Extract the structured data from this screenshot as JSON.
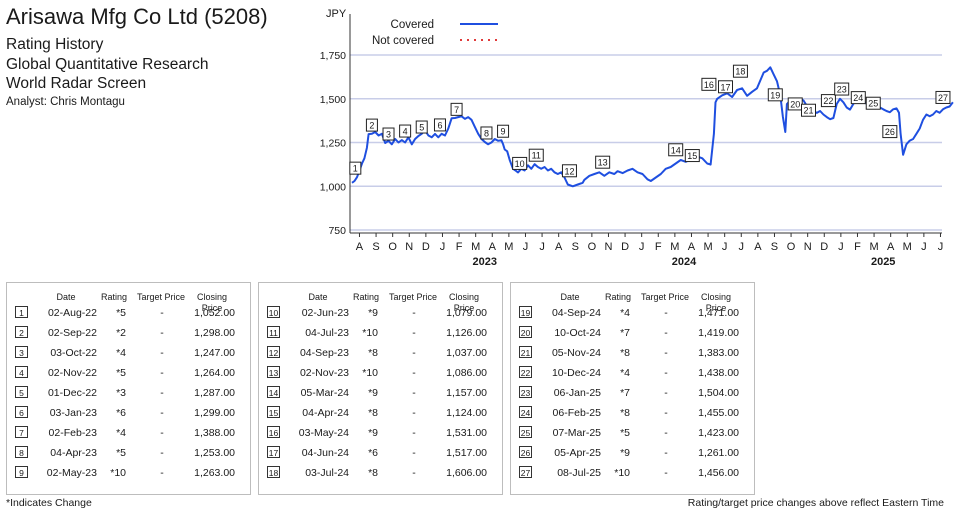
{
  "header": {
    "title": "Arisawa Mfg Co Ltd (5208)",
    "line1": "Rating History",
    "line2": "Global Quantitative Research",
    "line3": "World Radar Screen",
    "analyst": "Analyst: Chris Montagu"
  },
  "table_headers": {
    "date": "Date",
    "rating": "Rating",
    "target": "Target Price",
    "close": "Closing Price"
  },
  "table_rows": [
    {
      "n": "1",
      "date": "02-Aug-22",
      "rating": "*5",
      "target": "-",
      "close": "1,052.00"
    },
    {
      "n": "2",
      "date": "02-Sep-22",
      "rating": "*2",
      "target": "-",
      "close": "1,298.00"
    },
    {
      "n": "3",
      "date": "03-Oct-22",
      "rating": "*4",
      "target": "-",
      "close": "1,247.00"
    },
    {
      "n": "4",
      "date": "02-Nov-22",
      "rating": "*5",
      "target": "-",
      "close": "1,264.00"
    },
    {
      "n": "5",
      "date": "01-Dec-22",
      "rating": "*3",
      "target": "-",
      "close": "1,287.00"
    },
    {
      "n": "6",
      "date": "03-Jan-23",
      "rating": "*6",
      "target": "-",
      "close": "1,299.00"
    },
    {
      "n": "7",
      "date": "02-Feb-23",
      "rating": "*4",
      "target": "-",
      "close": "1,388.00"
    },
    {
      "n": "8",
      "date": "04-Apr-23",
      "rating": "*5",
      "target": "-",
      "close": "1,253.00"
    },
    {
      "n": "9",
      "date": "02-May-23",
      "rating": "*10",
      "target": "-",
      "close": "1,263.00"
    },
    {
      "n": "10",
      "date": "02-Jun-23",
      "rating": "*9",
      "target": "-",
      "close": "1,079.00"
    },
    {
      "n": "11",
      "date": "04-Jul-23",
      "rating": "*10",
      "target": "-",
      "close": "1,126.00"
    },
    {
      "n": "12",
      "date": "04-Sep-23",
      "rating": "*8",
      "target": "-",
      "close": "1,037.00"
    },
    {
      "n": "13",
      "date": "02-Nov-23",
      "rating": "*10",
      "target": "-",
      "close": "1,086.00"
    },
    {
      "n": "14",
      "date": "05-Mar-24",
      "rating": "*9",
      "target": "-",
      "close": "1,157.00"
    },
    {
      "n": "15",
      "date": "04-Apr-24",
      "rating": "*8",
      "target": "-",
      "close": "1,124.00"
    },
    {
      "n": "16",
      "date": "03-May-24",
      "rating": "*9",
      "target": "-",
      "close": "1,531.00"
    },
    {
      "n": "17",
      "date": "04-Jun-24",
      "rating": "*6",
      "target": "-",
      "close": "1,517.00"
    },
    {
      "n": "18",
      "date": "03-Jul-24",
      "rating": "*8",
      "target": "-",
      "close": "1,606.00"
    },
    {
      "n": "19",
      "date": "04-Sep-24",
      "rating": "*4",
      "target": "-",
      "close": "1,471.00"
    },
    {
      "n": "20",
      "date": "10-Oct-24",
      "rating": "*7",
      "target": "-",
      "close": "1,419.00"
    },
    {
      "n": "21",
      "date": "05-Nov-24",
      "rating": "*8",
      "target": "-",
      "close": "1,383.00"
    },
    {
      "n": "22",
      "date": "10-Dec-24",
      "rating": "*4",
      "target": "-",
      "close": "1,438.00"
    },
    {
      "n": "23",
      "date": "06-Jan-25",
      "rating": "*7",
      "target": "-",
      "close": "1,504.00"
    },
    {
      "n": "24",
      "date": "06-Feb-25",
      "rating": "*8",
      "target": "-",
      "close": "1,455.00"
    },
    {
      "n": "25",
      "date": "07-Mar-25",
      "rating": "*5",
      "target": "-",
      "close": "1,423.00"
    },
    {
      "n": "26",
      "date": "05-Apr-25",
      "rating": "*9",
      "target": "-",
      "close": "1,261.00"
    },
    {
      "n": "27",
      "date": "08-Jul-25",
      "rating": "*10",
      "target": "-",
      "close": "1,456.00"
    }
  ],
  "footer": {
    "left": "*Indicates Change",
    "right": "Rating/target price changes above reflect Eastern Time"
  },
  "chart_data": {
    "type": "line",
    "ylabel": "JPY",
    "ylim": [
      750,
      1750
    ],
    "yticks": [
      750,
      1000,
      1250,
      1500,
      1750
    ],
    "ytick_labels": [
      "750",
      "1,000",
      "1,250",
      "1,500",
      "1,750"
    ],
    "x_months": [
      "A",
      "S",
      "O",
      "N",
      "D",
      "J",
      "F",
      "M",
      "A",
      "M",
      "J",
      "J",
      "A",
      "S",
      "O",
      "N",
      "D",
      "J",
      "F",
      "M",
      "A",
      "M",
      "J",
      "J",
      "A",
      "S",
      "O",
      "N",
      "D",
      "J",
      "F",
      "M",
      "A",
      "M",
      "J",
      "J"
    ],
    "x_years": [
      {
        "label": "2023",
        "at_month": 8
      },
      {
        "label": "2024",
        "at_month": 20
      },
      {
        "label": "2025",
        "at_month": 32
      }
    ],
    "grid": "horizontal",
    "legend": [
      {
        "name": "Covered",
        "color": "#1f4fe0",
        "style": "solid"
      },
      {
        "name": "Not covered",
        "color": "#e03a3a",
        "style": "dotted"
      }
    ],
    "series": [
      {
        "name": "Covered",
        "color": "#1f4fe0",
        "points": [
          [
            0.0,
            1020
          ],
          [
            0.15,
            1030
          ],
          [
            0.3,
            1052
          ],
          [
            0.45,
            1090
          ],
          [
            0.6,
            1130
          ],
          [
            0.75,
            1160
          ],
          [
            0.9,
            1220
          ],
          [
            1.0,
            1298
          ],
          [
            1.2,
            1300
          ],
          [
            1.4,
            1310
          ],
          [
            1.6,
            1290
          ],
          [
            1.8,
            1300
          ],
          [
            2.0,
            1247
          ],
          [
            2.2,
            1260
          ],
          [
            2.4,
            1240
          ],
          [
            2.6,
            1270
          ],
          [
            2.8,
            1250
          ],
          [
            3.0,
            1264
          ],
          [
            3.2,
            1250
          ],
          [
            3.4,
            1280
          ],
          [
            3.6,
            1240
          ],
          [
            3.8,
            1270
          ],
          [
            4.0,
            1287
          ],
          [
            4.2,
            1300
          ],
          [
            4.4,
            1320
          ],
          [
            4.6,
            1290
          ],
          [
            4.8,
            1280
          ],
          [
            5.0,
            1299
          ],
          [
            5.2,
            1280
          ],
          [
            5.4,
            1300
          ],
          [
            5.6,
            1290
          ],
          [
            5.8,
            1330
          ],
          [
            6.0,
            1388
          ],
          [
            6.2,
            1390
          ],
          [
            6.4,
            1395
          ],
          [
            6.6,
            1400
          ],
          [
            6.8,
            1385
          ],
          [
            7.0,
            1395
          ],
          [
            7.2,
            1380
          ],
          [
            7.4,
            1340
          ],
          [
            7.6,
            1300
          ],
          [
            7.8,
            1270
          ],
          [
            8.0,
            1253
          ],
          [
            8.2,
            1240
          ],
          [
            8.4,
            1250
          ],
          [
            8.6,
            1270
          ],
          [
            8.8,
            1260
          ],
          [
            9.0,
            1263
          ],
          [
            9.1,
            1240
          ],
          [
            9.2,
            1210
          ],
          [
            9.35,
            1200
          ],
          [
            9.5,
            1150
          ],
          [
            9.7,
            1100
          ],
          [
            9.85,
            1090
          ],
          [
            10.0,
            1079
          ],
          [
            10.2,
            1100
          ],
          [
            10.4,
            1090
          ],
          [
            10.6,
            1120
          ],
          [
            10.8,
            1100
          ],
          [
            11.0,
            1126
          ],
          [
            11.2,
            1110
          ],
          [
            11.4,
            1100
          ],
          [
            11.6,
            1110
          ],
          [
            11.8,
            1090
          ],
          [
            12.0,
            1100
          ],
          [
            12.2,
            1080
          ],
          [
            12.4,
            1070
          ],
          [
            12.6,
            1080
          ],
          [
            12.8,
            1050
          ],
          [
            13.0,
            1010
          ],
          [
            13.3,
            1000
          ],
          [
            13.6,
            1010
          ],
          [
            13.9,
            1020
          ],
          [
            14.0,
            1037
          ],
          [
            14.3,
            1060
          ],
          [
            14.6,
            1070
          ],
          [
            14.9,
            1080
          ],
          [
            15.2,
            1060
          ],
          [
            15.5,
            1080
          ],
          [
            15.8,
            1070
          ],
          [
            16.0,
            1086
          ],
          [
            16.3,
            1075
          ],
          [
            16.6,
            1090
          ],
          [
            16.9,
            1100
          ],
          [
            17.2,
            1080
          ],
          [
            17.5,
            1070
          ],
          [
            17.8,
            1040
          ],
          [
            18.0,
            1030
          ],
          [
            18.3,
            1050
          ],
          [
            18.6,
            1070
          ],
          [
            18.9,
            1100
          ],
          [
            19.2,
            1110
          ],
          [
            19.5,
            1130
          ],
          [
            19.8,
            1150
          ],
          [
            20.1,
            1140
          ],
          [
            20.5,
            1157
          ],
          [
            20.8,
            1170
          ],
          [
            21.1,
            1160
          ],
          [
            21.4,
            1130
          ],
          [
            21.6,
            1124
          ],
          [
            21.8,
            1300
          ],
          [
            21.9,
            1480
          ],
          [
            22.0,
            1500
          ],
          [
            22.3,
            1520
          ],
          [
            22.6,
            1531
          ],
          [
            22.9,
            1510
          ],
          [
            23.2,
            1550
          ],
          [
            23.5,
            1560
          ],
          [
            23.8,
            1517
          ],
          [
            24.1,
            1540
          ],
          [
            24.4,
            1560
          ],
          [
            24.6,
            1606
          ],
          [
            24.8,
            1650
          ],
          [
            25.0,
            1660
          ],
          [
            25.2,
            1680
          ],
          [
            25.4,
            1640
          ],
          [
            25.6,
            1600
          ],
          [
            25.8,
            1520
          ],
          [
            25.95,
            1400
          ],
          [
            26.1,
            1310
          ],
          [
            26.2,
            1470
          ],
          [
            26.4,
            1490
          ],
          [
            26.6,
            1480
          ],
          [
            26.8,
            1471
          ],
          [
            27.0,
            1500
          ],
          [
            27.2,
            1490
          ],
          [
            27.4,
            1460
          ],
          [
            27.6,
            1440
          ],
          [
            27.8,
            1430
          ],
          [
            28.0,
            1419
          ],
          [
            28.2,
            1430
          ],
          [
            28.4,
            1410
          ],
          [
            28.6,
            1395
          ],
          [
            28.8,
            1383
          ],
          [
            29.0,
            1390
          ],
          [
            29.2,
            1470
          ],
          [
            29.4,
            1500
          ],
          [
            29.6,
            1480
          ],
          [
            29.8,
            1450
          ],
          [
            30.0,
            1438
          ],
          [
            30.2,
            1470
          ],
          [
            30.4,
            1490
          ],
          [
            30.6,
            1504
          ],
          [
            30.8,
            1490
          ],
          [
            31.0,
            1470
          ],
          [
            31.2,
            1465
          ],
          [
            31.4,
            1460
          ],
          [
            31.6,
            1455
          ],
          [
            31.8,
            1450
          ],
          [
            32.0,
            1440
          ],
          [
            32.2,
            1430
          ],
          [
            32.4,
            1423
          ],
          [
            32.6,
            1440
          ],
          [
            32.8,
            1445
          ],
          [
            32.95,
            1420
          ],
          [
            33.05,
            1300
          ],
          [
            33.2,
            1180
          ],
          [
            33.4,
            1240
          ],
          [
            33.6,
            1261
          ],
          [
            33.8,
            1270
          ],
          [
            34.0,
            1300
          ],
          [
            34.2,
            1330
          ],
          [
            34.4,
            1380
          ],
          [
            34.6,
            1410
          ],
          [
            34.8,
            1400
          ],
          [
            35.0,
            1410
          ],
          [
            35.2,
            1430
          ],
          [
            35.4,
            1420
          ],
          [
            35.6,
            1440
          ],
          [
            35.8,
            1450
          ],
          [
            36.0,
            1456
          ],
          [
            36.2,
            1480
          ]
        ]
      }
    ],
    "markers": [
      {
        "label": "1",
        "x": 0.2,
        "y": 1052
      },
      {
        "label": "2",
        "x": 1.2,
        "y": 1298
      },
      {
        "label": "3",
        "x": 2.2,
        "y": 1247
      },
      {
        "label": "4",
        "x": 3.2,
        "y": 1264
      },
      {
        "label": "5",
        "x": 4.2,
        "y": 1287
      },
      {
        "label": "6",
        "x": 5.3,
        "y": 1299
      },
      {
        "label": "7",
        "x": 6.3,
        "y": 1388
      },
      {
        "label": "8",
        "x": 8.1,
        "y": 1253
      },
      {
        "label": "9",
        "x": 9.1,
        "y": 1263
      },
      {
        "label": "10",
        "x": 10.1,
        "y": 1079
      },
      {
        "label": "11",
        "x": 11.1,
        "y": 1126
      },
      {
        "label": "12",
        "x": 13.1,
        "y": 1037
      },
      {
        "label": "13",
        "x": 15.1,
        "y": 1086
      },
      {
        "label": "14",
        "x": 19.5,
        "y": 1157
      },
      {
        "label": "15",
        "x": 20.5,
        "y": 1124
      },
      {
        "label": "16",
        "x": 21.5,
        "y": 1531
      },
      {
        "label": "17",
        "x": 22.5,
        "y": 1517
      },
      {
        "label": "18",
        "x": 23.4,
        "y": 1606
      },
      {
        "label": "19",
        "x": 25.5,
        "y": 1471
      },
      {
        "label": "20",
        "x": 26.7,
        "y": 1419
      },
      {
        "label": "21",
        "x": 27.5,
        "y": 1383
      },
      {
        "label": "22",
        "x": 28.7,
        "y": 1438
      },
      {
        "label": "23",
        "x": 29.5,
        "y": 1504
      },
      {
        "label": "24",
        "x": 30.5,
        "y": 1455
      },
      {
        "label": "25",
        "x": 31.4,
        "y": 1423
      },
      {
        "label": "26",
        "x": 32.4,
        "y": 1261
      },
      {
        "label": "27",
        "x": 35.6,
        "y": 1456
      }
    ]
  }
}
